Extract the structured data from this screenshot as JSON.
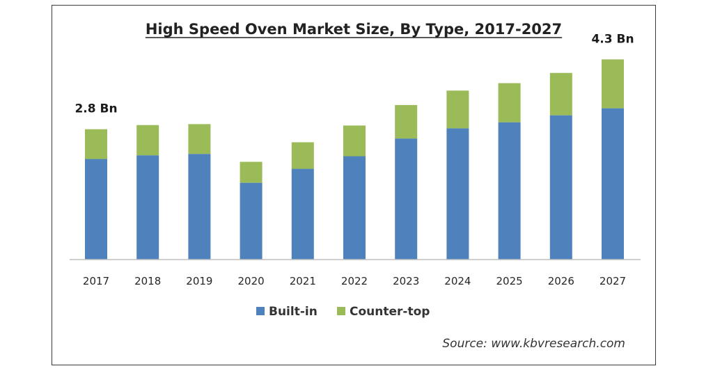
{
  "chart_data": {
    "type": "bar",
    "stacked": true,
    "title": "High Speed Oven Market Size, By Type, 2017-2027",
    "categories": [
      "2017",
      "2018",
      "2019",
      "2020",
      "2021",
      "2022",
      "2023",
      "2024",
      "2025",
      "2026",
      "2027"
    ],
    "series": [
      {
        "name": "Built-in",
        "color": "#4f81bd",
        "values": [
          2.16,
          2.24,
          2.27,
          1.65,
          1.95,
          2.22,
          2.6,
          2.82,
          2.95,
          3.1,
          3.25
        ]
      },
      {
        "name": "Counter-top",
        "color": "#9bbb59",
        "values": [
          0.64,
          0.65,
          0.64,
          0.45,
          0.57,
          0.66,
          0.72,
          0.81,
          0.84,
          0.91,
          1.05
        ]
      }
    ],
    "ylim": [
      0,
      4.5
    ],
    "grid": false,
    "legend_position": "bottom",
    "annotations": [
      {
        "category": "2017",
        "text": "2.8 Bn"
      },
      {
        "category": "2027",
        "text": "4.3 Bn"
      }
    ],
    "source": "Source: www.kbvresearch.com"
  }
}
